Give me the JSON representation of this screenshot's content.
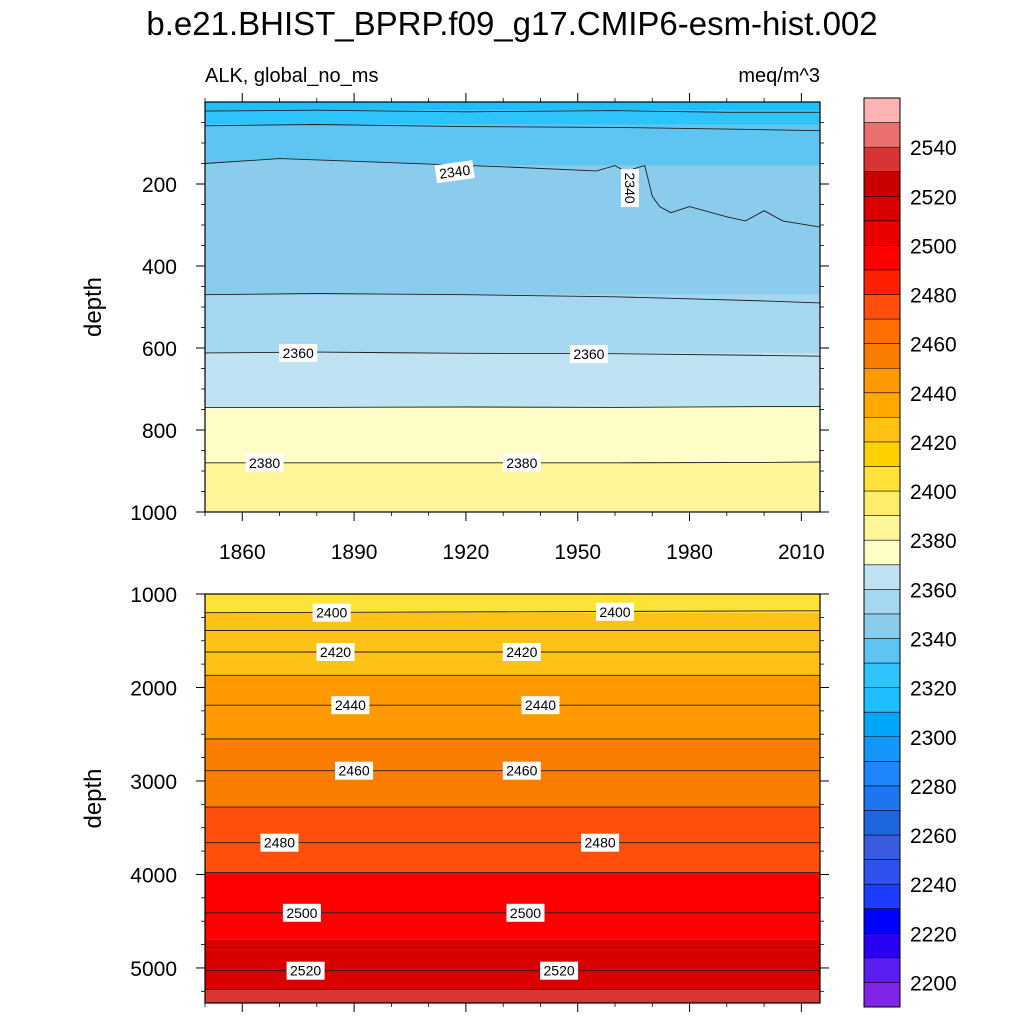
{
  "title": "b.e21.BHIST_BPRP.f09_g17.CMIP6-esm-hist.002",
  "subtitle_left": "ALK, global_no_ms",
  "subtitle_right": "meq/m^3",
  "chart_data": [
    {
      "type": "heatmap",
      "name": "upper-panel",
      "xlim": [
        1850,
        2015
      ],
      "ylim": [
        1000,
        0
      ],
      "ylabel": "depth",
      "x_ticks": [
        1860,
        1890,
        1920,
        1950,
        1980,
        2010
      ],
      "y_ticks": [
        200,
        400,
        600,
        800,
        1000
      ],
      "bands": [
        {
          "top": 0,
          "bottom": 20,
          "color": "#1ebeff"
        },
        {
          "top": 20,
          "bottom": 55,
          "color": "#2dc3fb"
        },
        {
          "top": 55,
          "bottom": 155,
          "color": "#5ec4f1"
        },
        {
          "top": 155,
          "bottom": 470,
          "color": "#8bcbec"
        },
        {
          "top": 470,
          "bottom": 612,
          "color": "#a6d7f0"
        },
        {
          "top": 612,
          "bottom": 745,
          "color": "#bfe3f2"
        },
        {
          "top": 745,
          "bottom": 880,
          "color": "#fefdc7"
        },
        {
          "top": 880,
          "bottom": 1000,
          "color": "#fdf597"
        }
      ],
      "contours": [
        {
          "x": [
            1850,
            1880,
            1920,
            1960,
            1990,
            2015
          ],
          "depth": [
            22,
            20,
            24,
            21,
            25,
            25
          ]
        },
        {
          "x": [
            1850,
            1880,
            1920,
            1960,
            1990,
            2015
          ],
          "depth": [
            58,
            55,
            60,
            62,
            66,
            70
          ]
        },
        {
          "x": [
            1850,
            1870,
            1900,
            1930,
            1955,
            1960,
            1963,
            1966,
            1968,
            1970,
            1972,
            1975,
            1980,
            1990,
            1995,
            2000,
            2005,
            2015
          ],
          "depth": [
            150,
            138,
            148,
            158,
            168,
            155,
            170,
            160,
            155,
            230,
            255,
            270,
            255,
            280,
            290,
            265,
            290,
            305
          ]
        },
        {
          "x": [
            1850,
            1880,
            1920,
            1960,
            2000,
            2015
          ],
          "depth": [
            470,
            467,
            470,
            475,
            485,
            490
          ]
        },
        {
          "x": [
            1850,
            1880,
            1920,
            1960,
            2000,
            2015
          ],
          "depth": [
            612,
            610,
            613,
            614,
            618,
            620
          ]
        },
        {
          "x": [
            1850,
            1880,
            1920,
            1960,
            2000,
            2015
          ],
          "depth": [
            745,
            745,
            744,
            745,
            743,
            743
          ]
        },
        {
          "x": [
            1850,
            1880,
            1920,
            1960,
            2000,
            2015
          ],
          "depth": [
            880,
            880,
            880,
            880,
            879,
            878
          ]
        }
      ],
      "labels": [
        {
          "text": "2340",
          "x": 1917,
          "depth": 170,
          "angle": -8
        },
        {
          "text": "2340",
          "x": 1964,
          "depth": 210,
          "angle": 90
        },
        {
          "text": "2360",
          "x": 1875,
          "depth": 612,
          "angle": 0
        },
        {
          "text": "2360",
          "x": 1953,
          "depth": 615,
          "angle": 0
        },
        {
          "text": "2380",
          "x": 1866,
          "depth": 880,
          "angle": 0
        },
        {
          "text": "2380",
          "x": 1935,
          "depth": 880,
          "angle": 0
        }
      ]
    },
    {
      "type": "heatmap",
      "name": "lower-panel",
      "xlim": [
        1850,
        2015
      ],
      "ylim": [
        5375,
        1000
      ],
      "ylabel": "depth",
      "y_ticks": [
        1000,
        2000,
        3000,
        4000,
        5000
      ],
      "bands": [
        {
          "top": 1000,
          "bottom": 1200,
          "color": "#fee237"
        },
        {
          "top": 1200,
          "bottom": 1870,
          "color": "#fec216"
        },
        {
          "top": 1870,
          "bottom": 2550,
          "color": "#fe9a00"
        },
        {
          "top": 2550,
          "bottom": 3280,
          "color": "#fb7d00"
        },
        {
          "top": 3280,
          "bottom": 3980,
          "color": "#ff4f0a"
        },
        {
          "top": 3980,
          "bottom": 4700,
          "color": "#ff0000"
        },
        {
          "top": 4700,
          "bottom": 5230,
          "color": "#d80000"
        },
        {
          "top": 5230,
          "bottom": 5375,
          "color": "#da3434"
        }
      ],
      "contours": [
        {
          "x": [
            1850,
            2015
          ],
          "depth": [
            1000,
            1000
          ]
        },
        {
          "x": [
            1850,
            2015
          ],
          "depth": [
            1200,
            1180
          ]
        },
        {
          "x": [
            1850,
            2015
          ],
          "depth": [
            1390,
            1390
          ]
        },
        {
          "x": [
            1850,
            2015
          ],
          "depth": [
            1620,
            1620
          ]
        },
        {
          "x": [
            1850,
            2015
          ],
          "depth": [
            1870,
            1870
          ]
        },
        {
          "x": [
            1850,
            2015
          ],
          "depth": [
            2190,
            2190
          ]
        },
        {
          "x": [
            1850,
            2015
          ],
          "depth": [
            2550,
            2550
          ]
        },
        {
          "x": [
            1850,
            2015
          ],
          "depth": [
            2890,
            2890
          ]
        },
        {
          "x": [
            1850,
            2015
          ],
          "depth": [
            3280,
            3280
          ]
        },
        {
          "x": [
            1850,
            2015
          ],
          "depth": [
            3660,
            3660
          ]
        },
        {
          "x": [
            1850,
            2015
          ],
          "depth": [
            3980,
            3980
          ]
        },
        {
          "x": [
            1850,
            2015
          ],
          "depth": [
            4410,
            4410
          ]
        },
        {
          "x": [
            1850,
            2015
          ],
          "depth": [
            4780,
            4780
          ]
        },
        {
          "x": [
            1850,
            2015
          ],
          "depth": [
            5030,
            5030
          ]
        },
        {
          "x": [
            1850,
            2015
          ],
          "depth": [
            5230,
            5230
          ]
        }
      ],
      "labels": [
        {
          "text": "2400",
          "x": 1884,
          "depth": 1200,
          "angle": 0
        },
        {
          "text": "2400",
          "x": 1960,
          "depth": 1190,
          "angle": 0
        },
        {
          "text": "2420",
          "x": 1885,
          "depth": 1620,
          "angle": 0
        },
        {
          "text": "2420",
          "x": 1935,
          "depth": 1620,
          "angle": 0
        },
        {
          "text": "2440",
          "x": 1889,
          "depth": 2190,
          "angle": 0
        },
        {
          "text": "2440",
          "x": 1940,
          "depth": 2190,
          "angle": 0
        },
        {
          "text": "2460",
          "x": 1890,
          "depth": 2890,
          "angle": 0
        },
        {
          "text": "2460",
          "x": 1935,
          "depth": 2890,
          "angle": 0
        },
        {
          "text": "2480",
          "x": 1870,
          "depth": 3660,
          "angle": 0
        },
        {
          "text": "2480",
          "x": 1956,
          "depth": 3660,
          "angle": 0
        },
        {
          "text": "2500",
          "x": 1876,
          "depth": 4410,
          "angle": 0
        },
        {
          "text": "2500",
          "x": 1936,
          "depth": 4410,
          "angle": 0
        },
        {
          "text": "2520",
          "x": 1877,
          "depth": 5030,
          "angle": 0
        },
        {
          "text": "2520",
          "x": 1945,
          "depth": 5030,
          "angle": 0
        }
      ]
    }
  ],
  "colorbar": {
    "labels": [
      "2540",
      "2520",
      "2500",
      "2480",
      "2460",
      "2440",
      "2420",
      "2400",
      "2380",
      "2360",
      "2340",
      "2320",
      "2300",
      "2280",
      "2260",
      "2240",
      "2220",
      "2200"
    ],
    "colors": [
      "#fdb3b3",
      "#ea7070",
      "#d93434",
      "#c80000",
      "#d80000",
      "#e80000",
      "#ff0000",
      "#ff2000",
      "#ff4f0a",
      "#ff6e00",
      "#fb7d00",
      "#fe9a00",
      "#fea800",
      "#fec216",
      "#fed000",
      "#fee237",
      "#fded6a",
      "#fdf597",
      "#fefdc7",
      "#bfe3f2",
      "#a6d7f0",
      "#8bcbec",
      "#5ec4f1",
      "#2dc3fb",
      "#1ebeff",
      "#00a6f7",
      "#1496fb",
      "#1e85fb",
      "#1e75f0",
      "#1e65e0",
      "#3a5ae0",
      "#3050f0",
      "#1e3cff",
      "#0000ff",
      "#2a00f0",
      "#5a1ef0",
      "#8024e6"
    ]
  }
}
